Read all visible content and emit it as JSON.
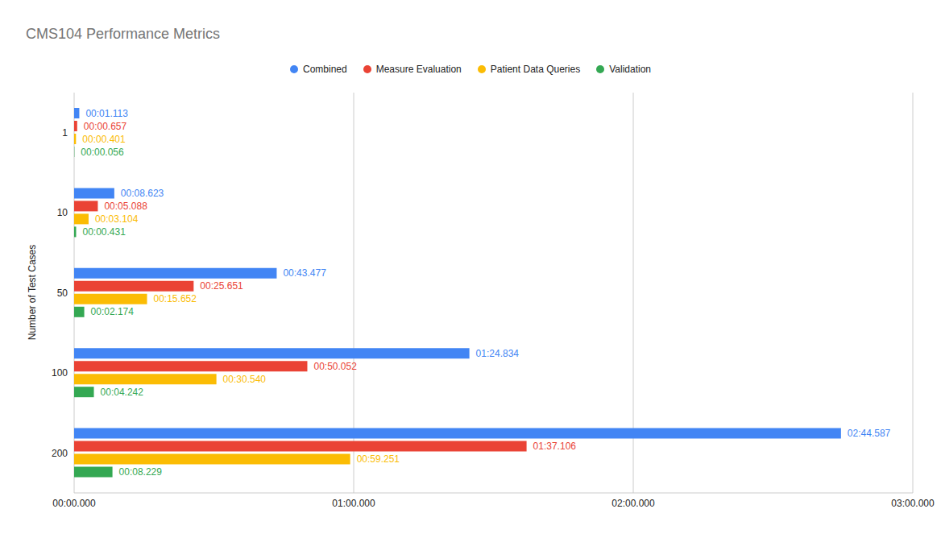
{
  "chart_data": {
    "type": "bar",
    "orientation": "horizontal",
    "title": "CMS104 Performance Metrics",
    "y_label": "Number of Test Cases",
    "categories": [
      "1",
      "10",
      "50",
      "100",
      "200"
    ],
    "series": [
      {
        "name": "Combined",
        "color": "#4285f4",
        "values": [
          1.113,
          8.623,
          43.477,
          84.834,
          164.587
        ],
        "value_labels": [
          "00:01.113",
          "00:08.623",
          "00:43.477",
          "01:24.834",
          "02:44.587"
        ]
      },
      {
        "name": "Measure Evaluation",
        "color": "#ea4335",
        "values": [
          0.657,
          5.088,
          25.651,
          50.052,
          97.106
        ],
        "value_labels": [
          "00:00.657",
          "00:05.088",
          "00:25.651",
          "00:50.052",
          "01:37.106"
        ]
      },
      {
        "name": "Patient Data Queries",
        "color": "#fbbc04",
        "values": [
          0.401,
          3.104,
          15.652,
          30.54,
          59.251
        ],
        "value_labels": [
          "00:00.401",
          "00:03.104",
          "00:15.652",
          "00:30.540",
          "00:59.251"
        ]
      },
      {
        "name": "Validation",
        "color": "#34a853",
        "values": [
          0.056,
          0.431,
          2.174,
          4.242,
          8.229
        ],
        "value_labels": [
          "00:00.056",
          "00:00.431",
          "00:02.174",
          "00:04.242",
          "00:08.229"
        ]
      }
    ],
    "xlim": [
      0,
      180
    ],
    "xticks": [
      {
        "value": 0,
        "label": "00:00.000"
      },
      {
        "value": 60,
        "label": "01:00.000"
      },
      {
        "value": 120,
        "label": "02:00.000"
      },
      {
        "value": 180,
        "label": "03:00.000"
      }
    ],
    "grid": true,
    "legend": "top",
    "data_labels": true
  }
}
